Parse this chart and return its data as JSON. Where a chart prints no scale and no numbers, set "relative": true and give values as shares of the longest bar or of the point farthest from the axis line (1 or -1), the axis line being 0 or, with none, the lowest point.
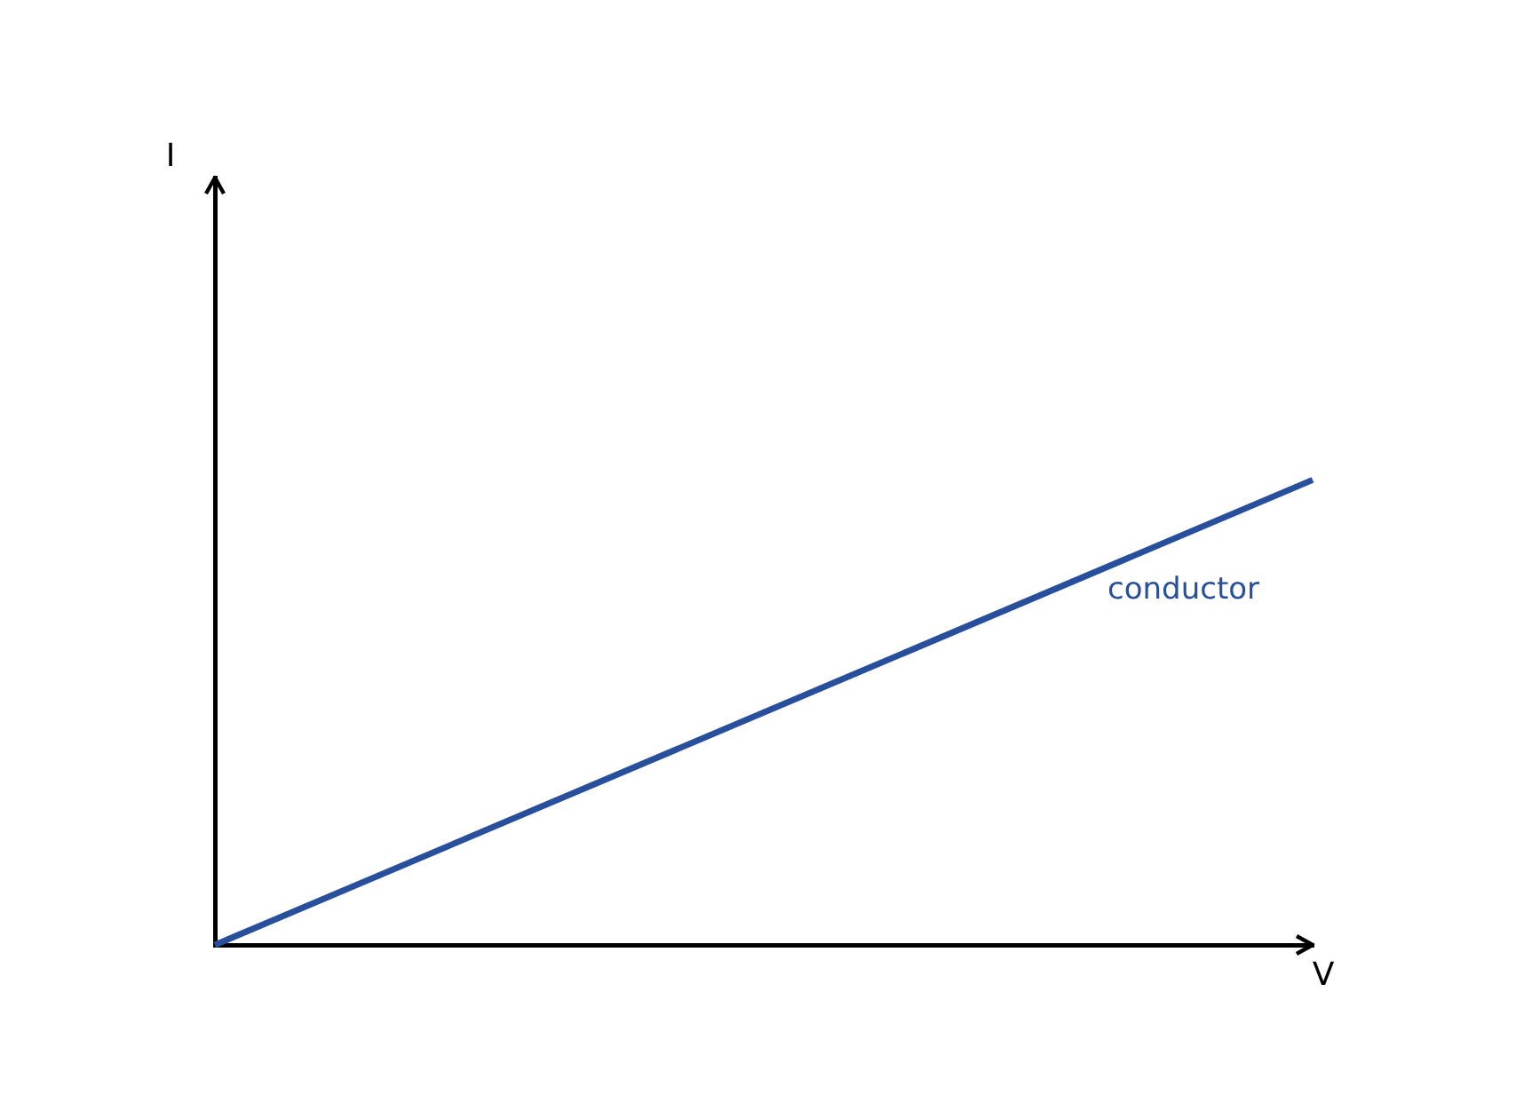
{
  "chart_data": {
    "type": "line",
    "xlabel": "V",
    "annotations": [
      "I"
    ],
    "categories": [
      null,
      null
    ],
    "relative": true,
    "series": [
      {
        "name": "conductor",
        "color": "#274f9c",
        "values": [
          0,
          1
        ]
      }
    ]
  }
}
